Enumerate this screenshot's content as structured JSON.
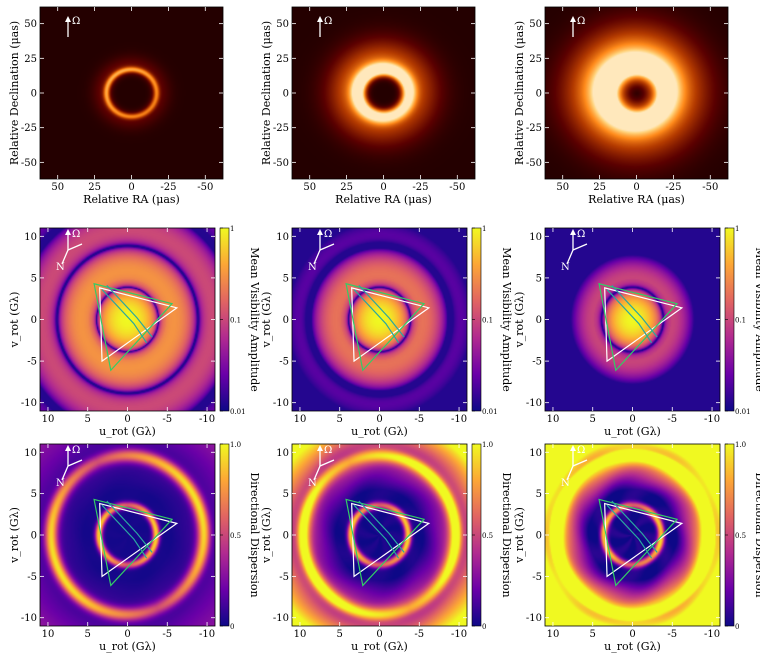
{
  "colors": {
    "afmhot": [
      "#000000",
      "#5a0000",
      "#b33a00",
      "#ff8a1a",
      "#ffd27a",
      "#ffffff"
    ],
    "plasma": [
      "#0d0887",
      "#6a00a8",
      "#b12a90",
      "#e16462",
      "#fca636",
      "#f0f921"
    ],
    "triangle_white": "#ffffff",
    "triangle_green": "#33cc66",
    "triangle_teal": "#2aa7a0"
  },
  "labels": {
    "omega": "Ω",
    "north": "N"
  },
  "chart_data": [
    {
      "row": "image",
      "type": "heatmap",
      "xlabel": "Relative RA (μas)",
      "ylabel": "Relative Declination (μas)",
      "xticks": [
        50,
        25,
        0,
        -25,
        -50
      ],
      "yticks": [
        50,
        25,
        0,
        -25,
        -50
      ],
      "xlim": [
        62,
        -62
      ],
      "ylim": [
        -62,
        62
      ],
      "panels": [
        {
          "ring_radius": 17,
          "ring_width": 2,
          "halo_width": 9,
          "halo_level": 0.35,
          "peak": 0.55
        },
        {
          "ring_radius": 17,
          "ring_width": 5,
          "halo_width": 20,
          "halo_level": 0.6,
          "peak": 0.9
        },
        {
          "ring_radius": 18,
          "ring_width": 10,
          "halo_width": 28,
          "halo_level": 0.8,
          "peak": 1.0
        }
      ]
    },
    {
      "row": "visibility",
      "type": "heatmap",
      "xlabel": "u_rot (Gλ)",
      "ylabel": "v_rot (Gλ)",
      "xticks": [
        10,
        5,
        0,
        -5,
        -10
      ],
      "yticks": [
        10,
        5,
        0,
        -5,
        -10
      ],
      "xlim": [
        11,
        -11
      ],
      "ylim": [
        -11,
        11
      ],
      "colorbar_label": "Mean Visibility Amplitude",
      "colorbar_ticks": [
        "1",
        "0.1",
        "0.01"
      ],
      "colorbar_tick_values": [
        1,
        0.1,
        0.01
      ],
      "colorbar_scale": "log",
      "panels": [
        {
          "falloff": 1.0
        },
        {
          "falloff": 1.6
        },
        {
          "falloff": 2.3
        }
      ]
    },
    {
      "row": "dispersion",
      "type": "heatmap",
      "xlabel": "u_rot (Gλ)",
      "ylabel": "v_rot (Gλ)",
      "xticks": [
        10,
        5,
        0,
        -5,
        -10
      ],
      "yticks": [
        10,
        5,
        0,
        -5,
        -10
      ],
      "xlim": [
        11,
        -11
      ],
      "ylim": [
        -11,
        11
      ],
      "colorbar_label": "Directional Dispersion",
      "colorbar_ticks": [
        "1.0",
        "0.5",
        "0"
      ],
      "colorbar_tick_values": [
        1.0,
        0.5,
        0
      ],
      "panels": [
        {
          "base": 0.08
        },
        {
          "base": 0.35
        },
        {
          "base": 0.7
        }
      ]
    }
  ]
}
